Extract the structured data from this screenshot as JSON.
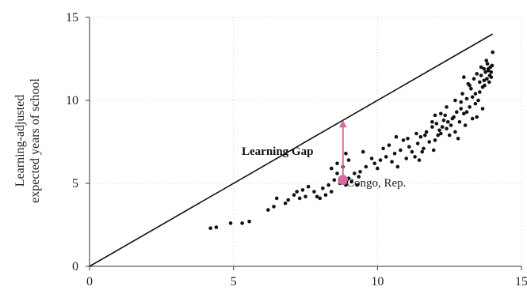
{
  "chart_data": {
    "type": "scatter",
    "title": "",
    "xlabel": "",
    "ylabel": "Learning-adjusted expected years of school",
    "ylabel_lines": [
      "Learning-adjusted",
      "expected years of school"
    ],
    "xlim": [
      0,
      15
    ],
    "ylim": [
      0,
      15
    ],
    "xticks": [
      0,
      5,
      10,
      15
    ],
    "yticks": [
      0,
      5,
      10,
      15
    ],
    "grid": "dotted",
    "reference_line": {
      "from": [
        0,
        0
      ],
      "to": [
        14,
        14
      ]
    },
    "annotations": {
      "gap_label": "Learning Gap",
      "country_label": "Congo, Rep.",
      "highlight_point": {
        "x": 8.8,
        "y": 5.2
      },
      "gap_arrow": {
        "x": 8.8,
        "y_from": 5.2,
        "y_to": 8.8
      }
    },
    "colors": {
      "points": "#111111",
      "highlight": "#d36aa0",
      "line": "#111111"
    },
    "points": [
      [
        4.2,
        2.3
      ],
      [
        4.4,
        2.35
      ],
      [
        4.9,
        2.6
      ],
      [
        5.3,
        2.6
      ],
      [
        5.55,
        2.7
      ],
      [
        6.2,
        3.4
      ],
      [
        6.4,
        3.6
      ],
      [
        6.5,
        4.1
      ],
      [
        6.8,
        3.8
      ],
      [
        6.9,
        4.0
      ],
      [
        7.1,
        4.3
      ],
      [
        7.2,
        4.5
      ],
      [
        7.3,
        4.1
      ],
      [
        7.4,
        4.6
      ],
      [
        7.5,
        4.2
      ],
      [
        7.6,
        4.8
      ],
      [
        7.8,
        4.5
      ],
      [
        7.9,
        4.2
      ],
      [
        8.0,
        4.1
      ],
      [
        8.1,
        4.7
      ],
      [
        8.2,
        4.3
      ],
      [
        8.3,
        4.9
      ],
      [
        8.4,
        4.5
      ],
      [
        8.5,
        5.2
      ],
      [
        8.6,
        5.6
      ],
      [
        8.7,
        5.0
      ],
      [
        8.9,
        4.9
      ],
      [
        9.0,
        5.3
      ],
      [
        9.1,
        5.1
      ],
      [
        9.2,
        5.6
      ],
      [
        9.3,
        4.9
      ],
      [
        9.35,
        5.4
      ],
      [
        9.4,
        5.7
      ],
      [
        8.8,
        6.0
      ],
      [
        9.0,
        6.4
      ],
      [
        8.9,
        6.8
      ],
      [
        8.4,
        5.9
      ],
      [
        8.6,
        6.2
      ],
      [
        9.5,
        6.9
      ],
      [
        9.6,
        6.0
      ],
      [
        9.8,
        6.5
      ],
      [
        9.9,
        6.2
      ],
      [
        10.0,
        5.9
      ],
      [
        10.1,
        6.4
      ],
      [
        10.3,
        6.6
      ],
      [
        10.5,
        6.3
      ],
      [
        10.6,
        6.8
      ],
      [
        10.7,
        6.0
      ],
      [
        10.8,
        7.0
      ],
      [
        10.9,
        7.6
      ],
      [
        11.0,
        6.5
      ],
      [
        11.1,
        7.2
      ],
      [
        11.2,
        6.9
      ],
      [
        11.3,
        6.6
      ],
      [
        11.4,
        7.4
      ],
      [
        11.5,
        7.8
      ],
      [
        11.6,
        7.1
      ],
      [
        11.7,
        8.1
      ],
      [
        11.8,
        7.5
      ],
      [
        11.9,
        8.4
      ],
      [
        11.95,
        7.0
      ],
      [
        12.0,
        7.6
      ],
      [
        12.05,
        8.6
      ],
      [
        12.1,
        7.9
      ],
      [
        12.2,
        8.0
      ],
      [
        12.3,
        8.8
      ],
      [
        12.35,
        9.1
      ],
      [
        12.4,
        8.3
      ],
      [
        12.5,
        7.9
      ],
      [
        12.55,
        8.5
      ],
      [
        12.6,
        8.9
      ],
      [
        12.7,
        8.1
      ],
      [
        12.75,
        9.3
      ],
      [
        12.8,
        7.7
      ],
      [
        12.85,
        8.7
      ],
      [
        12.9,
        9.9
      ],
      [
        12.95,
        10.4
      ],
      [
        13.0,
        9.2
      ],
      [
        13.05,
        8.5
      ],
      [
        13.1,
        10.1
      ],
      [
        13.15,
        11.0
      ],
      [
        13.2,
        9.6
      ],
      [
        13.25,
        10.7
      ],
      [
        13.3,
        8.9
      ],
      [
        13.35,
        11.3
      ],
      [
        13.4,
        10.4
      ],
      [
        13.45,
        11.6
      ],
      [
        13.5,
        10.0
      ],
      [
        13.55,
        11.1
      ],
      [
        13.6,
        11.5
      ],
      [
        13.65,
        9.5
      ],
      [
        13.7,
        11.9
      ],
      [
        13.72,
        10.9
      ],
      [
        13.75,
        11.7
      ],
      [
        13.8,
        11.3
      ],
      [
        13.82,
        12.2
      ],
      [
        13.85,
        11.8
      ],
      [
        13.9,
        11.5
      ],
      [
        13.92,
        12.0
      ],
      [
        13.95,
        11.4
      ],
      [
        14.0,
        12.9
      ],
      [
        13.88,
        11.1
      ],
      [
        13.78,
        12.4
      ],
      [
        12.15,
        8.2
      ],
      [
        12.25,
        8.4
      ],
      [
        12.45,
        8.7
      ],
      [
        12.65,
        9.0
      ],
      [
        12.9,
        9.5
      ],
      [
        13.1,
        9.3
      ],
      [
        13.3,
        10.2
      ],
      [
        13.4,
        9.8
      ],
      [
        13.55,
        10.5
      ],
      [
        13.65,
        10.8
      ],
      [
        13.7,
        11.2
      ],
      [
        13.85,
        11.9
      ],
      [
        13.95,
        11.7
      ],
      [
        13.98,
        12.1
      ],
      [
        10.2,
        7.1
      ],
      [
        10.4,
        7.3
      ],
      [
        11.05,
        7.7
      ],
      [
        11.35,
        8.0
      ],
      [
        11.65,
        7.9
      ],
      [
        11.9,
        8.7
      ],
      [
        11.55,
        6.9
      ],
      [
        12.0,
        9.1
      ],
      [
        11.45,
        6.4
      ],
      [
        10.65,
        7.8
      ],
      [
        12.7,
        10.0
      ],
      [
        13.0,
        11.4
      ],
      [
        13.2,
        10.9
      ],
      [
        13.6,
        12.0
      ],
      [
        13.45,
        9.0
      ],
      [
        12.4,
        9.6
      ],
      [
        12.2,
        9.2
      ]
    ]
  }
}
